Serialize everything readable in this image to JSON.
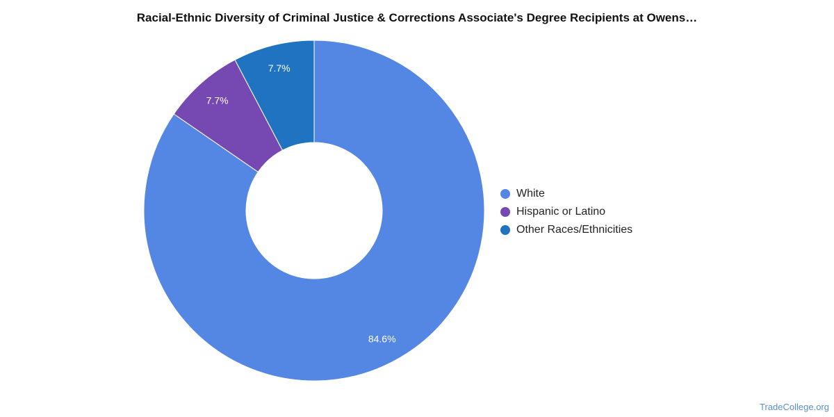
{
  "title": "Racial-Ethnic Diversity of Criminal Justice & Corrections Associate's Degree Recipients at Owens…",
  "watermark": "TradeCollege.org",
  "chart_data": {
    "type": "pie",
    "variant": "donut",
    "title": "Racial-Ethnic Diversity of Criminal Justice & Corrections Associate's Degree Recipients at Owens…",
    "legend_position": "right",
    "slices": [
      {
        "name": "White",
        "value": 84.6,
        "label": "84.6%",
        "color": "#5486e3"
      },
      {
        "name": "Hispanic or Latino",
        "value": 7.7,
        "label": "7.7%",
        "color": "#7548b2"
      },
      {
        "name": "Other Races/Ethnicities",
        "value": 7.7,
        "label": "7.7%",
        "color": "#1f73c0"
      }
    ]
  }
}
